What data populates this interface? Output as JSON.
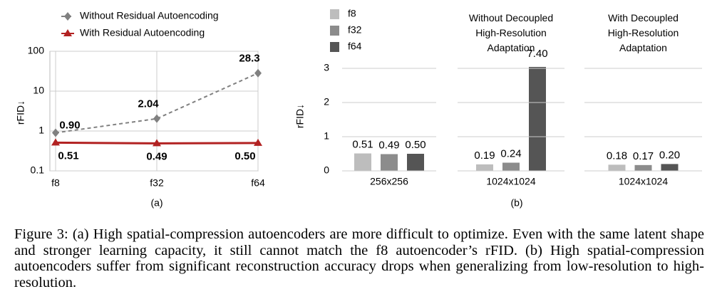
{
  "chart_data": [
    {
      "type": "line",
      "ylabel": "rFID↓",
      "sublabel": "(a)",
      "categories": [
        "f8",
        "f32",
        "f64"
      ],
      "series": [
        {
          "name": "Without Residual Autoencoding",
          "color": "#808080",
          "line_style": "dashed",
          "marker": "diamond",
          "values": [
            0.9,
            2.04,
            28.3
          ],
          "value_labels": [
            "0.90",
            "2.04",
            "28.3"
          ]
        },
        {
          "name": "With Residual Autoencoding",
          "color": "#b22222",
          "line_style": "solid",
          "marker": "triangle",
          "values": [
            0.51,
            0.49,
            0.5
          ],
          "value_labels": [
            "0.51",
            "0.49",
            "0.50"
          ]
        }
      ],
      "log_y": true,
      "ylim": [
        0.1,
        100
      ],
      "yticks": [
        0.1,
        1,
        10,
        100
      ],
      "grid": true
    },
    {
      "type": "bar",
      "ylabel": "rFID↓",
      "sublabel": "(b)",
      "categories": [
        "256x256",
        "1024x1024",
        "1024x1024"
      ],
      "panel_titles": [
        null,
        "Without Decoupled\nHigh-Resolution\nAdaptation",
        "With Decoupled\nHigh-Resolution\nAdaptation"
      ],
      "series": [
        {
          "name": "f8",
          "color": "#bdbdbd",
          "values": [
            0.51,
            0.19,
            0.18
          ],
          "value_labels": [
            "0.51",
            "0.19",
            "0.18"
          ]
        },
        {
          "name": "f32",
          "color": "#8c8c8c",
          "values": [
            0.49,
            0.24,
            0.17
          ],
          "value_labels": [
            "0.49",
            "0.24",
            "0.17"
          ]
        },
        {
          "name": "f64",
          "color": "#555555",
          "values": [
            0.5,
            7.4,
            0.2
          ],
          "value_labels": [
            "0.50",
            "7.40",
            "0.20"
          ]
        }
      ],
      "ylim": [
        0,
        3
      ],
      "yticks": [
        0,
        1,
        2,
        3
      ],
      "grid": true
    }
  ],
  "caption": "Figure 3: (a) High spatial-compression autoencoders are more difficult to optimize. Even with the same latent shape and stronger learning capacity, it still cannot match the f8 autoencoder’s rFID. (b) High spatial-compression autoencoders suffer from significant reconstruction accuracy drops when generalizing from low-resolution to high-resolution."
}
